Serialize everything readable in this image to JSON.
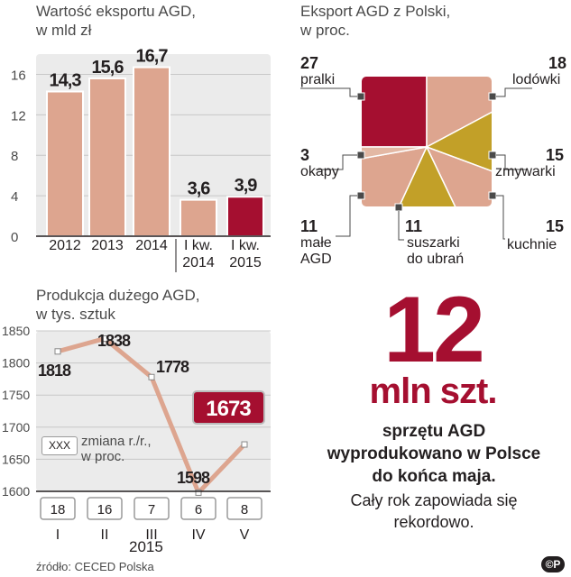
{
  "colors": {
    "bar": "#dda58f",
    "highlight": "#a50f30",
    "mustard": "#c2a028",
    "text": "#231f20",
    "grid": "#c8c8c8",
    "panel": "#ebebeb"
  },
  "bar_chart": {
    "title_line1": "Wartość eksportu AGD,",
    "title_line2": "w mld zł"
  },
  "pie_chart": {
    "title_line1": "Eksport AGD z Polski,",
    "title_line2": "w proc."
  },
  "line_chart": {
    "title_line1": "Produkcja dużego AGD,",
    "title_line2": "w tys. sztuk",
    "legend_box": "XXX",
    "legend_text_line1": "zmiana r./r.,",
    "legend_text_line2": "w proc.",
    "year_label": "2015"
  },
  "highlight": {
    "number": "12",
    "unit": "mln szt.",
    "line1": "sprzętu AGD",
    "line2": "wyprodukowano w Polsce",
    "line3": "do końca maja.",
    "line4": "Cały rok zapowiada się",
    "line5": "rekordowo."
  },
  "source": "źródło: CECED Polska",
  "copyright": "©P",
  "chart_data": [
    {
      "type": "bar",
      "title": "Wartość eksportu AGD, w mld zł",
      "categories": [
        "2012",
        "2013",
        "2014",
        "I kw. 2014",
        "I kw. 2015"
      ],
      "category_lines": [
        [
          "2012"
        ],
        [
          "2013"
        ],
        [
          "2014"
        ],
        [
          "I kw.",
          "2014"
        ],
        [
          "I kw.",
          "2015"
        ]
      ],
      "values": [
        14.3,
        15.6,
        16.7,
        3.6,
        3.9
      ],
      "value_labels": [
        "14,3",
        "15,6",
        "16,7",
        "3,6",
        "3,9"
      ],
      "ylim": [
        0,
        18
      ],
      "yticks": [
        0,
        4,
        8,
        12,
        16
      ],
      "highlight_index": 4,
      "grid": true
    },
    {
      "type": "pie",
      "title": "Eksport AGD z Polski, w proc.",
      "slices": [
        {
          "label": "pralki",
          "value": 27,
          "value_label": "27"
        },
        {
          "label": "lodówki",
          "value": 18,
          "value_label": "18"
        },
        {
          "label": "zmywarki",
          "value": 15,
          "value_label": "15"
        },
        {
          "label": "kuchnie",
          "value": 15,
          "value_label": "15"
        },
        {
          "label": "suszarki do ubrań",
          "value": 11,
          "value_label": "11"
        },
        {
          "label": "małe AGD",
          "value": 11,
          "value_label": "11"
        },
        {
          "label": "okapy",
          "value": 3,
          "value_label": "3"
        }
      ]
    },
    {
      "type": "line",
      "title": "Produkcja dużego AGD, w tys. sztuk",
      "categories": [
        "I",
        "II",
        "III",
        "IV",
        "V"
      ],
      "values": [
        1818,
        1838,
        1778,
        1598,
        1673
      ],
      "value_labels": [
        "1818",
        "1838",
        "1778",
        "1598",
        "1673"
      ],
      "yoy_change": [
        "18",
        "16",
        "7",
        "6",
        "8"
      ],
      "ylim": [
        1600,
        1850
      ],
      "yticks": [
        1600,
        1650,
        1700,
        1750,
        1800,
        1850
      ],
      "highlight_index": 4,
      "xlabel": "2015",
      "grid": true
    }
  ]
}
